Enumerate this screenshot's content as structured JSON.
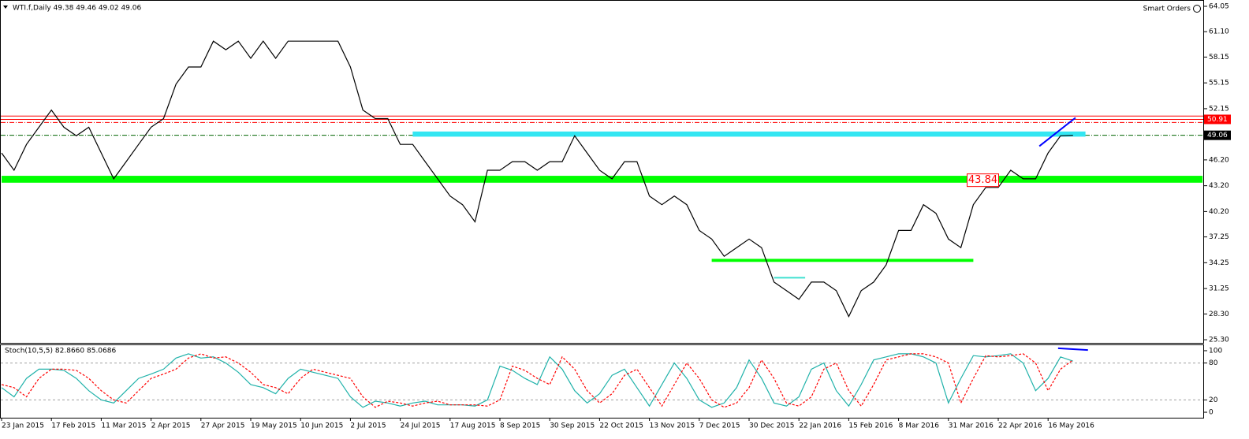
{
  "header": "WTI.f,Daily  49.38 49.46 49.02 49.06",
  "smart_orders": "Smart Orders",
  "chart_data": [
    {
      "type": "line",
      "categories": [
        "23 Jan 2015",
        null,
        null,
        null,
        "17 Feb 2015",
        null,
        null,
        null,
        "11 Mar 2015",
        null,
        null,
        null,
        "2 Apr 2015",
        null,
        null,
        null,
        "27 Apr 2015",
        null,
        null,
        null,
        "19 May 2015",
        null,
        null,
        null,
        "10 Jun 2015",
        null,
        null,
        null,
        "2 Jul 2015",
        null,
        null,
        null,
        "24 Jul 2015",
        null,
        null,
        null,
        "17 Aug 2015",
        null,
        null,
        null,
        "8 Sep 2015",
        null,
        null,
        null,
        "30 Sep 2015",
        null,
        null,
        null,
        "22 Oct 2015",
        null,
        null,
        null,
        "13 Nov 2015",
        null,
        null,
        null,
        "7 Dec 2015",
        null,
        null,
        null,
        "30 Dec 2015",
        null,
        null,
        null,
        "22 Jan 2016",
        null,
        null,
        null,
        "15 Feb 2016",
        null,
        null,
        null,
        "8 Mar 2016",
        null,
        null,
        null,
        "31 Mar 2016",
        null,
        null,
        null,
        "22 Apr 2016",
        null,
        null,
        null,
        "16 May 2016",
        null,
        null
      ],
      "series": [
        {
          "color": "#000000",
          "values": [
            47,
            45,
            48,
            50,
            52,
            50,
            49,
            50,
            47,
            44,
            46,
            48,
            50,
            51,
            55,
            57,
            57,
            60,
            59,
            60,
            58,
            60,
            58,
            60,
            60,
            60,
            60,
            60,
            57,
            52,
            51,
            51,
            48,
            48,
            46,
            44,
            42,
            41,
            39,
            45,
            45,
            46,
            46,
            45,
            46,
            46,
            49,
            47,
            45,
            44,
            46,
            46,
            42,
            41,
            42,
            41,
            38,
            37,
            35,
            36,
            37,
            36,
            32,
            31,
            30,
            32,
            32,
            31,
            28,
            31,
            32,
            34,
            38,
            38,
            41,
            40,
            37,
            36,
            41,
            43,
            43,
            45,
            44,
            44,
            47,
            49,
            49.06
          ]
        }
      ],
      "ylim": [
        24.94,
        64.69
      ],
      "yticks": [
        64.05,
        {
          "value": 61.1,
          "label": "61.10"
        },
        58.15,
        55.15,
        52.15,
        {
          "value": 46.2,
          "label": "46.20"
        },
        {
          "value": 43.2,
          "label": "43.20"
        },
        {
          "value": 40.2,
          "label": "40.20"
        },
        37.25,
        34.25,
        31.25,
        {
          "value": 28.3,
          "label": "28.30"
        },
        {
          "value": 25.3,
          "label": "25.30"
        }
      ],
      "levels": [
        {
          "value": 51.3,
          "color": "#ff0000",
          "style": "solid",
          "marker": false
        },
        {
          "value": 50.91,
          "color": "#ff0000",
          "style": "solid",
          "marker": true
        },
        {
          "value": 50.55,
          "color": "#ff0000",
          "style": "dashdot",
          "marker": false
        },
        {
          "value": 49.06,
          "color": "#006400",
          "style": "dashdot",
          "marker": true
        }
      ],
      "bands": [
        {
          "low": 48.9,
          "high": 49.5,
          "from": 33,
          "to": 87,
          "color": "#33e6f2"
        },
        {
          "low": 43.55,
          "high": 44.35,
          "from": 0,
          "to": 96.4,
          "color": "#00ff00"
        },
        {
          "low": 34.35,
          "high": 34.7,
          "from": 57,
          "to": 78,
          "color": "#00ff00"
        },
        {
          "low": 32.45,
          "high": 32.6,
          "from": 62,
          "to": 64.5,
          "color": "#40e0d0"
        }
      ],
      "annotations": [
        {
          "value": 43.84,
          "x": 77.5,
          "color": "#ff0000"
        }
      ],
      "trendlines": [
        {
          "x": [
            83.3,
            86.2
          ],
          "y": [
            47.8,
            51.1
          ],
          "color": "#0000ff"
        }
      ]
    },
    {
      "type": "line",
      "title": "Stoch(10,5,5) 82.8660 85.0686",
      "series": [
        {
          "color": "#20b2aa",
          "style": "solid",
          "values": [
            40,
            25,
            55,
            70,
            70,
            68,
            55,
            35,
            20,
            15,
            35,
            55,
            62,
            70,
            88,
            95,
            88,
            90,
            80,
            65,
            45,
            40,
            30,
            55,
            70,
            65,
            60,
            55,
            25,
            8,
            18,
            15,
            10,
            15,
            18,
            12,
            12,
            12,
            10,
            20,
            75,
            68,
            55,
            45,
            90,
            70,
            35,
            15,
            30,
            60,
            70,
            40,
            10,
            45,
            80,
            55,
            20,
            8,
            15,
            40,
            85,
            55,
            15,
            10,
            25,
            70,
            80,
            35,
            10,
            45,
            85,
            90,
            95,
            95,
            90,
            80,
            15,
            55,
            92,
            90,
            92,
            95,
            80,
            35,
            55,
            90,
            83
          ]
        },
        {
          "color": "#ff0000",
          "style": "dashed",
          "values": [
            45,
            40,
            25,
            55,
            70,
            70,
            68,
            55,
            35,
            20,
            15,
            35,
            55,
            62,
            70,
            88,
            95,
            88,
            90,
            80,
            65,
            45,
            40,
            30,
            55,
            70,
            65,
            60,
            55,
            25,
            8,
            18,
            15,
            10,
            15,
            18,
            12,
            12,
            12,
            10,
            20,
            75,
            68,
            55,
            45,
            90,
            70,
            35,
            15,
            30,
            60,
            70,
            40,
            10,
            45,
            80,
            55,
            20,
            8,
            15,
            40,
            85,
            55,
            15,
            10,
            25,
            70,
            80,
            35,
            10,
            45,
            85,
            90,
            95,
            95,
            90,
            80,
            15,
            55,
            92,
            90,
            92,
            95,
            80,
            35,
            70,
            85
          ]
        }
      ],
      "ylim": [
        -8.9,
        108.9
      ],
      "yticks": [
        100,
        80,
        20,
        0
      ],
      "levels": [
        80,
        20
      ],
      "trendlines": [
        {
          "x": [
            84.8,
            87.2
          ],
          "y": [
            104,
            101
          ],
          "color": "#0000ff"
        }
      ]
    }
  ]
}
